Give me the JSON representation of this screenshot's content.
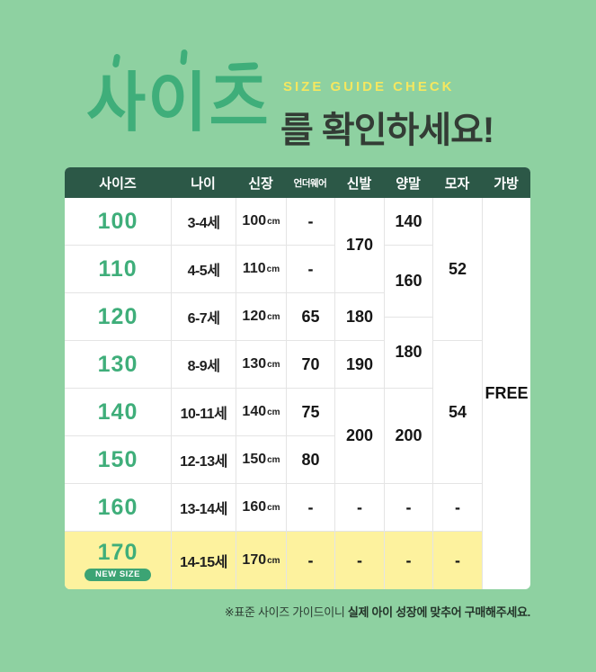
{
  "title": {
    "main": "사이즈",
    "overline_en": "SIZE GUIDE CHECK",
    "suffix": "를 확인하세요!"
  },
  "colors": {
    "page_bg": "#8ed1a1",
    "table_header_bg": "#2c5847",
    "accent_green": "#3fae7a",
    "accent_yellow": "#f5e75f",
    "highlight_row_bg": "#fdf29e",
    "badge_bg": "#3ca474",
    "grid_line": "#e4e4e4"
  },
  "table": {
    "headers": {
      "size": "사이즈",
      "age": "나이",
      "height": "신장",
      "underwear": "언더웨어",
      "shoes": "신발",
      "socks": "양말",
      "hat": "모자",
      "bag": "가방"
    },
    "size_col": [
      "100",
      "110",
      "120",
      "130",
      "140",
      "150",
      "160",
      "170"
    ],
    "new_badge": "NEW SIZE",
    "age_col": [
      "3-4세",
      "4-5세",
      "6-7세",
      "8-9세",
      "10-11세",
      "12-13세",
      "13-14세",
      "14-15세"
    ],
    "height_col": [
      "100",
      "110",
      "120",
      "130",
      "140",
      "150",
      "160",
      "170"
    ],
    "height_unit": "cm",
    "underwear_col": [
      "-",
      "-",
      "65",
      "70",
      "75",
      "80",
      "-",
      "-"
    ],
    "shoes_col": [
      "170",
      "180",
      "190",
      "200",
      "-",
      "-"
    ],
    "socks_col": [
      "140",
      "160",
      "180",
      "200",
      "-",
      "-"
    ],
    "hat_col": [
      "52",
      "54",
      "-",
      "-"
    ],
    "bag_col": [
      "FREE"
    ]
  },
  "footnote": {
    "prefix": "※표준 사이즈 가이드이니 ",
    "emphasis": "실제 아이 성장에 맞추어 구매해주세요."
  },
  "chart_data": {
    "type": "table",
    "title": "사이즈를 확인하세요! (SIZE GUIDE CHECK)",
    "columns": [
      "사이즈",
      "나이",
      "신장",
      "언더웨어",
      "신발",
      "양말",
      "모자",
      "가방"
    ],
    "rows": [
      [
        "100",
        "3-4세",
        "100cm",
        "-",
        "170",
        "140",
        "52",
        "FREE"
      ],
      [
        "110",
        "4-5세",
        "110cm",
        "-",
        "170",
        "160",
        "52",
        "FREE"
      ],
      [
        "120",
        "6-7세",
        "120cm",
        "65",
        "180",
        "160~180",
        "52",
        "FREE"
      ],
      [
        "130",
        "8-9세",
        "130cm",
        "70",
        "190",
        "180",
        "54",
        "FREE"
      ],
      [
        "140",
        "10-11세",
        "140cm",
        "75",
        "200",
        "200",
        "54",
        "FREE"
      ],
      [
        "150",
        "12-13세",
        "150cm",
        "80",
        "200",
        "200",
        "54",
        "FREE"
      ],
      [
        "160",
        "13-14세",
        "160cm",
        "-",
        "-",
        "-",
        "-",
        "FREE"
      ],
      [
        "170 (NEW SIZE)",
        "14-15세",
        "170cm",
        "-",
        "-",
        "-",
        "-",
        "FREE"
      ]
    ],
    "merged_cells": [
      {
        "column": "신발",
        "value": "170",
        "covers_sizes": [
          "100",
          "110"
        ]
      },
      {
        "column": "신발",
        "value": "200",
        "covers_sizes": [
          "140",
          "150"
        ]
      },
      {
        "column": "양말",
        "value": "160",
        "covers_sizes": [
          "110",
          "120(상단)"
        ]
      },
      {
        "column": "양말",
        "value": "180",
        "covers_sizes": [
          "120(하단)",
          "130"
        ]
      },
      {
        "column": "양말",
        "value": "200",
        "covers_sizes": [
          "140",
          "150"
        ]
      },
      {
        "column": "모자",
        "value": "52",
        "covers_sizes": [
          "100",
          "110",
          "120"
        ]
      },
      {
        "column": "모자",
        "value": "54",
        "covers_sizes": [
          "130",
          "140",
          "150"
        ]
      },
      {
        "column": "가방",
        "value": "FREE",
        "covers_sizes": [
          "100",
          "110",
          "120",
          "130",
          "140",
          "150",
          "160",
          "170"
        ]
      }
    ],
    "notes": "※표준 사이즈 가이드이니 실제 아이 성장에 맞추어 구매해주세요."
  }
}
